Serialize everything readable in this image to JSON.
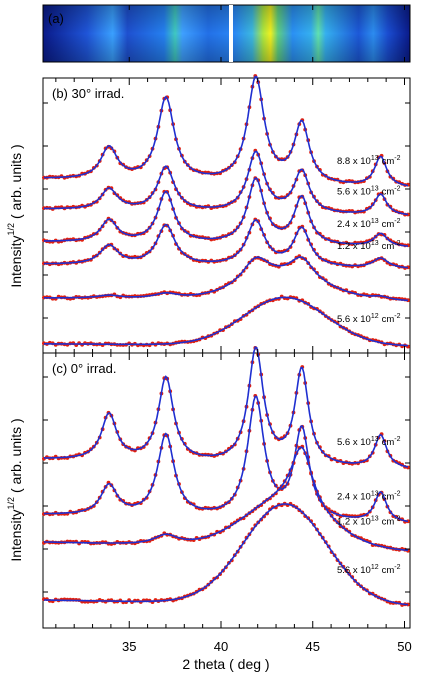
{
  "colors": {
    "fit": "#1f2fd0",
    "data": "#e02010",
    "frame": "#000000"
  },
  "x_axis": {
    "label": "2 theta ( deg )",
    "range": [
      30.3,
      50.3
    ],
    "ticks": [
      35,
      40,
      45,
      50
    ],
    "tick_labels": [
      "35",
      "40",
      "45",
      "50"
    ]
  },
  "panel_a": {
    "label": "(a)",
    "type": "2D detector image (false colour)"
  },
  "panel_b": {
    "label": "(b) 30° irrad.",
    "ylabel_main": "Intensity",
    "ylabel_sup": "1/2",
    "ylabel_rest": "( arb. units )"
  },
  "panel_c": {
    "label": "(c) 0° irrad.",
    "ylabel_main": "Intensity",
    "ylabel_sup": "1/2",
    "ylabel_rest": "( arb. units )"
  },
  "chart_data": [
    {
      "type": "line",
      "title": "(b) 30° irrad.",
      "xlabel": "2 theta ( deg )",
      "ylabel": "Intensity^1/2 ( arb. units )",
      "xlim": [
        30.3,
        50.3
      ],
      "peaks_deg": [
        33.9,
        37.0,
        41.9,
        44.4,
        48.7
      ],
      "series": [
        {
          "name": "8.8 x 10^13 cm^-2",
          "lab_base": "8.8 x 10",
          "lab_exp": "13",
          "lab_unit": "cm",
          "lab_unit_exp": "-2",
          "baseline": 184,
          "slope": 0.8,
          "hump_h": 0,
          "heights": [
            32,
            83,
            105,
            60,
            30
          ],
          "widths": [
            0.55,
            0.55,
            0.55,
            0.5,
            0.4
          ]
        },
        {
          "name": "5.6 x 10^13 cm^-2",
          "lab_base": "5.6 x 10",
          "lab_exp": "13",
          "lab_unit": "cm",
          "lab_unit_exp": "-2",
          "baseline": 213,
          "slope": 0.6,
          "hump_h": 0,
          "heights": [
            21,
            44,
            60,
            42,
            21
          ],
          "widths": [
            0.55,
            0.55,
            0.55,
            0.5,
            0.4
          ]
        },
        {
          "name": "2.4 x 10^13 cm^-2",
          "lab_base": "2.4 x 10",
          "lab_exp": "13",
          "lab_unit": "cm",
          "lab_unit_exp": "-2",
          "baseline": 245,
          "slope": 0.5,
          "hump_h": 0,
          "heights": [
            22,
            51,
            65,
            47,
            13
          ],
          "widths": [
            0.55,
            0.55,
            0.55,
            0.5,
            0.45
          ]
        },
        {
          "name": "1.2 x 10^13 cm^-2",
          "lab_base": "1.2 x 10",
          "lab_exp": "13",
          "lab_unit": "cm",
          "lab_unit_exp": "-2",
          "baseline": 267,
          "slope": 0.4,
          "hump_h": 0,
          "heights": [
            19,
            40,
            45,
            38,
            10
          ],
          "widths": [
            0.6,
            0.6,
            0.6,
            0.55,
            0.5
          ]
        },
        {
          "name": "",
          "lab_base": "",
          "lab_exp": "",
          "lab_unit": "",
          "lab_unit_exp": "",
          "baseline": 300,
          "slope": 0.3,
          "hump_h": 20,
          "heights": [
            3,
            5,
            25,
            22,
            3
          ],
          "widths": [
            0.8,
            0.8,
            0.9,
            0.8,
            0.6
          ]
        },
        {
          "name": "5.6 x 10^12 cm^-2",
          "lab_base": "5.6 x 10",
          "lab_exp": "12",
          "lab_unit": "cm",
          "lab_unit_exp": "-2",
          "baseline": 345,
          "slope": 0.2,
          "hump_h": 48,
          "heights": [
            0,
            0,
            0,
            0,
            0
          ],
          "widths": [
            0.8,
            0.8,
            0.8,
            0.8,
            0.6
          ]
        }
      ]
    },
    {
      "type": "line",
      "title": "(c) 0° irrad.",
      "xlabel": "2 theta ( deg )",
      "ylabel": "Intensity^1/2 ( arb. units )",
      "xlim": [
        30.3,
        50.3
      ],
      "peaks_deg": [
        33.9,
        37.0,
        41.9,
        44.4,
        48.7
      ],
      "series": [
        {
          "name": "5.6 x 10^13 cm^-2",
          "lab_base": "5.6 x 10",
          "lab_exp": "13",
          "lab_unit": "cm",
          "lab_unit_exp": "-2",
          "baseline": 465,
          "slope": 0.9,
          "hump_h": 0,
          "heights": [
            46,
            84,
            115,
            95,
            33
          ],
          "widths": [
            0.5,
            0.5,
            0.5,
            0.45,
            0.4
          ]
        },
        {
          "name": "2.4 x 10^13 cm^-2",
          "lab_base": "2.4 x 10",
          "lab_exp": "13",
          "lab_unit": "cm",
          "lab_unit_exp": "-2",
          "baseline": 520,
          "slope": 0.8,
          "hump_h": 0,
          "heights": [
            30,
            82,
            120,
            90,
            30
          ],
          "widths": [
            0.55,
            0.55,
            0.55,
            0.5,
            0.4
          ]
        },
        {
          "name": "1.2 x 10^13 cm^-2",
          "lab_base": "1.2 x 10",
          "lab_exp": "13",
          "lab_unit": "cm",
          "lab_unit_exp": "-2",
          "baseline": 547,
          "slope": 0.8,
          "hump_h": 45,
          "heights": [
            0,
            10,
            0,
            60,
            0
          ],
          "widths": [
            0.8,
            0.8,
            0.8,
            0.7,
            0.6
          ]
        },
        {
          "name": "5.6 x 10^12 cm^-2",
          "lab_base": "5.6 x 10",
          "lab_exp": "12",
          "lab_unit": "cm",
          "lab_unit_exp": "-2",
          "baseline": 603,
          "slope": 0.5,
          "hump_h": 100,
          "heights": [
            0,
            0,
            0,
            0,
            0
          ],
          "widths": [
            0.8,
            0.8,
            0.8,
            0.8,
            0.6
          ]
        }
      ]
    }
  ]
}
